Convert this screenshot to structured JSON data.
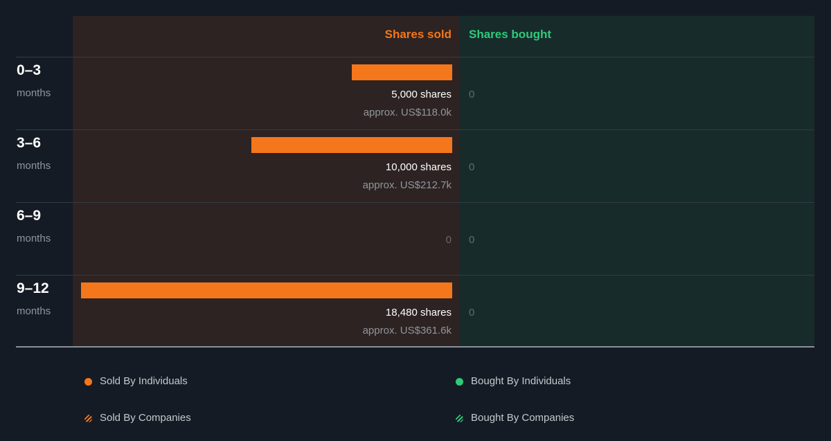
{
  "colors": {
    "sold": "#f5771b",
    "bought": "#2dcb78",
    "sold_panel": "#2d2322",
    "bought_panel": "#182b2b"
  },
  "chart_data": {
    "type": "bar",
    "orientation": "horizontal",
    "title": "",
    "headers": {
      "sold": "Shares sold",
      "bought": "Shares bought"
    },
    "categories": [
      {
        "period": "0–3",
        "unit": "months"
      },
      {
        "period": "3–6",
        "unit": "months"
      },
      {
        "period": "6–9",
        "unit": "months"
      },
      {
        "period": "9–12",
        "unit": "months"
      }
    ],
    "series": [
      {
        "name": "Shares sold",
        "values": [
          5000,
          10000,
          0,
          18480
        ],
        "value_labels": [
          "approx. US$118.0k",
          "approx. US$212.7k",
          "",
          "approx. US$361.6k"
        ]
      },
      {
        "name": "Shares bought",
        "values": [
          0,
          0,
          0,
          0
        ],
        "value_labels": [
          "",
          "",
          "",
          ""
        ]
      }
    ],
    "share_suffix": "shares",
    "zero_label": "0",
    "xlim": [
      0,
      18480
    ],
    "legend": {
      "placement": "bottom",
      "items": [
        {
          "label": "Sold By Individuals",
          "marker": "dot",
          "color": "#f5771b"
        },
        {
          "label": "Bought By Individuals",
          "marker": "dot",
          "color": "#2dcb78"
        },
        {
          "label": "Sold By Companies",
          "marker": "hatched",
          "color": "#f5771b"
        },
        {
          "label": "Bought By Companies",
          "marker": "hatched",
          "color": "#2dcb78"
        }
      ]
    }
  }
}
